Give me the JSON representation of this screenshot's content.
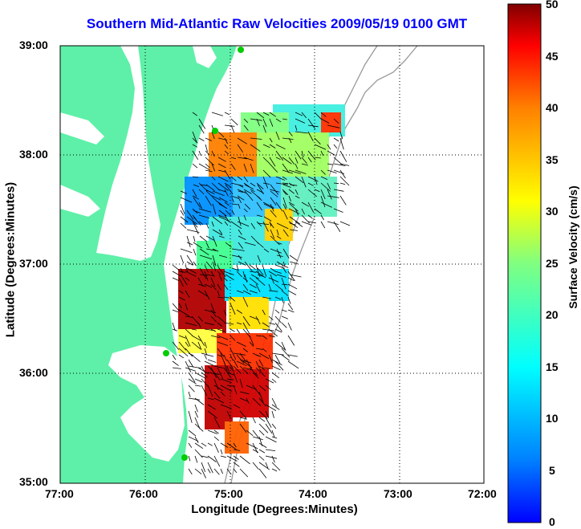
{
  "title": "Southern Mid-Atlantic Raw Velocities 2009/05/19 0100 GMT",
  "map": {
    "xlabel": "Longitude (Degrees:Minutes)",
    "ylabel": "Latitude (Degrees:Minutes)",
    "x_ticks": [
      "77:00",
      "76:00",
      "75:00",
      "74:00",
      "73:00",
      "72:00"
    ],
    "y_ticks": [
      "39:00",
      "38:00",
      "37:00",
      "36:00",
      "35:00"
    ],
    "lon_range": [
      -77,
      -72
    ],
    "lat_range": [
      35,
      39
    ],
    "grid": "dotted",
    "land_color": "#5ef0a8"
  },
  "colorbar": {
    "label": "Surface Velocity (cm/s)",
    "ticks": [
      "50",
      "45",
      "40",
      "35",
      "30",
      "25",
      "20",
      "15",
      "10",
      "5",
      "0"
    ],
    "range": [
      0,
      50
    ],
    "colormap": "jet"
  }
}
